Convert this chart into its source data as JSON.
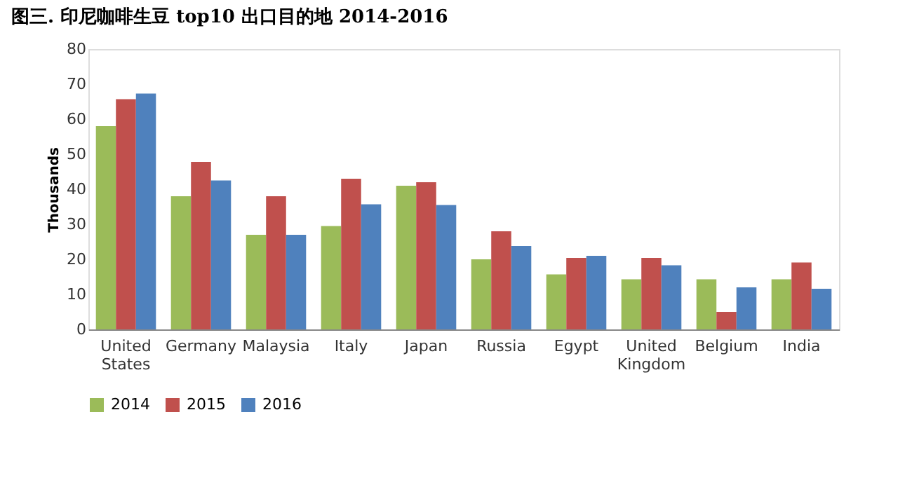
{
  "chart_data": {
    "type": "bar",
    "title": "图三. 印尼咖啡生豆 top10 出口目的地  2014-2016",
    "ylabel": "Thousands",
    "categories": [
      "United States",
      "Germany",
      "Malaysia",
      "Italy",
      "Japan",
      "Russia",
      "Egypt",
      "United Kingdom",
      "Belgium",
      "India"
    ],
    "series": [
      {
        "name": "2014",
        "color": "#9bbb59",
        "values": [
          58,
          38,
          27,
          29.5,
          41,
          20,
          15.7,
          14.3,
          14.3,
          14.3
        ]
      },
      {
        "name": "2015",
        "color": "#c0504d",
        "values": [
          65.7,
          47.8,
          38,
          43,
          42,
          28,
          20.4,
          20.4,
          5,
          19.1
        ]
      },
      {
        "name": "2016",
        "color": "#4f81bd",
        "values": [
          67.3,
          42.5,
          27,
          35.7,
          35.5,
          23.8,
          21,
          18.3,
          12,
          11.6
        ]
      }
    ],
    "ylim": [
      0,
      80
    ],
    "yticks": [
      0,
      10,
      20,
      30,
      40,
      50,
      60,
      70,
      80
    ],
    "grid": false,
    "legend": "bottom"
  }
}
